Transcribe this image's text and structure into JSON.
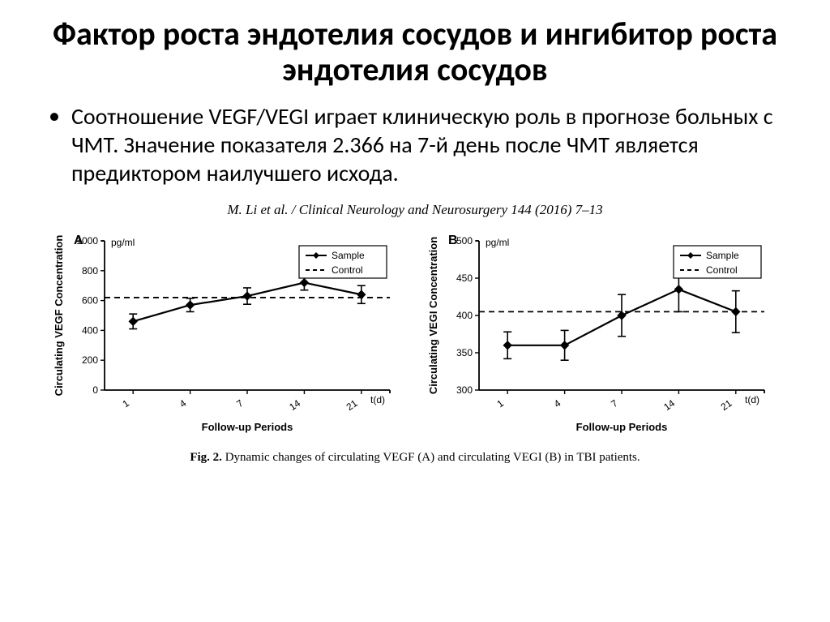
{
  "title": "Фактор роста эндотелия сосудов и ингибитор роста эндотелия сосудов",
  "bullet": "Соотношение VEGF/VEGI играет клиническую роль в прогнозе больных с ЧМТ. Значение показателя 2.366 на 7-й день после ЧМТ является предиктором наилучшего исхода.",
  "citation": "M. Li et al. / Clinical Neurology and Neurosurgery 144 (2016) 7–13",
  "caption_prefix": "Fig. 2.",
  "caption_text": "Dynamic changes of circulating VEGF (A) and circulating VEGI (B) in TBI patients.",
  "legend": {
    "sample": "Sample",
    "control": "Control"
  },
  "chartA": {
    "type": "line-errorbar",
    "panel_label": "A",
    "y_unit": "pg/ml",
    "ylabel": "Circulating VEGF Concentration",
    "xlabel": "Follow-up Periods",
    "xaxis_unit": "t(d)",
    "yticks": [
      0,
      200,
      400,
      600,
      800,
      1000
    ],
    "ylim": [
      0,
      1000
    ],
    "xcats": [
      "1",
      "4",
      "7",
      "14",
      "21"
    ],
    "control_y": 620,
    "series": [
      {
        "x": "1",
        "y": 460,
        "err": 50
      },
      {
        "x": "4",
        "y": 570,
        "err": 45
      },
      {
        "x": "7",
        "y": 630,
        "err": 55
      },
      {
        "x": "14",
        "y": 720,
        "err": 50
      },
      {
        "x": "21",
        "y": 640,
        "err": 60
      }
    ],
    "colors": {
      "line": "#000000",
      "marker": "#000000",
      "axis": "#000000",
      "dash": "#000000"
    },
    "fontsize": {
      "tick": 12,
      "label": 13,
      "panel": 16
    },
    "line_width": 2.2,
    "marker_size": 5
  },
  "chartB": {
    "type": "line-errorbar",
    "panel_label": "B",
    "y_unit": "pg/ml",
    "ylabel": "Circulating VEGI Concentration",
    "xlabel": "Follow-up Periods",
    "xaxis_unit": "t(d)",
    "yticks": [
      300,
      350,
      400,
      450,
      500
    ],
    "ylim": [
      300,
      500
    ],
    "xcats": [
      "1",
      "4",
      "7",
      "14",
      "21"
    ],
    "control_y": 405,
    "series": [
      {
        "x": "1",
        "y": 360,
        "err": 18
      },
      {
        "x": "4",
        "y": 360,
        "err": 20
      },
      {
        "x": "7",
        "y": 400,
        "err": 28
      },
      {
        "x": "14",
        "y": 435,
        "err": 30
      },
      {
        "x": "21",
        "y": 405,
        "err": 28
      }
    ],
    "colors": {
      "line": "#000000",
      "marker": "#000000",
      "axis": "#000000",
      "dash": "#000000"
    },
    "fontsize": {
      "tick": 12,
      "label": 13,
      "panel": 16
    },
    "line_width": 2.2,
    "marker_size": 5
  }
}
